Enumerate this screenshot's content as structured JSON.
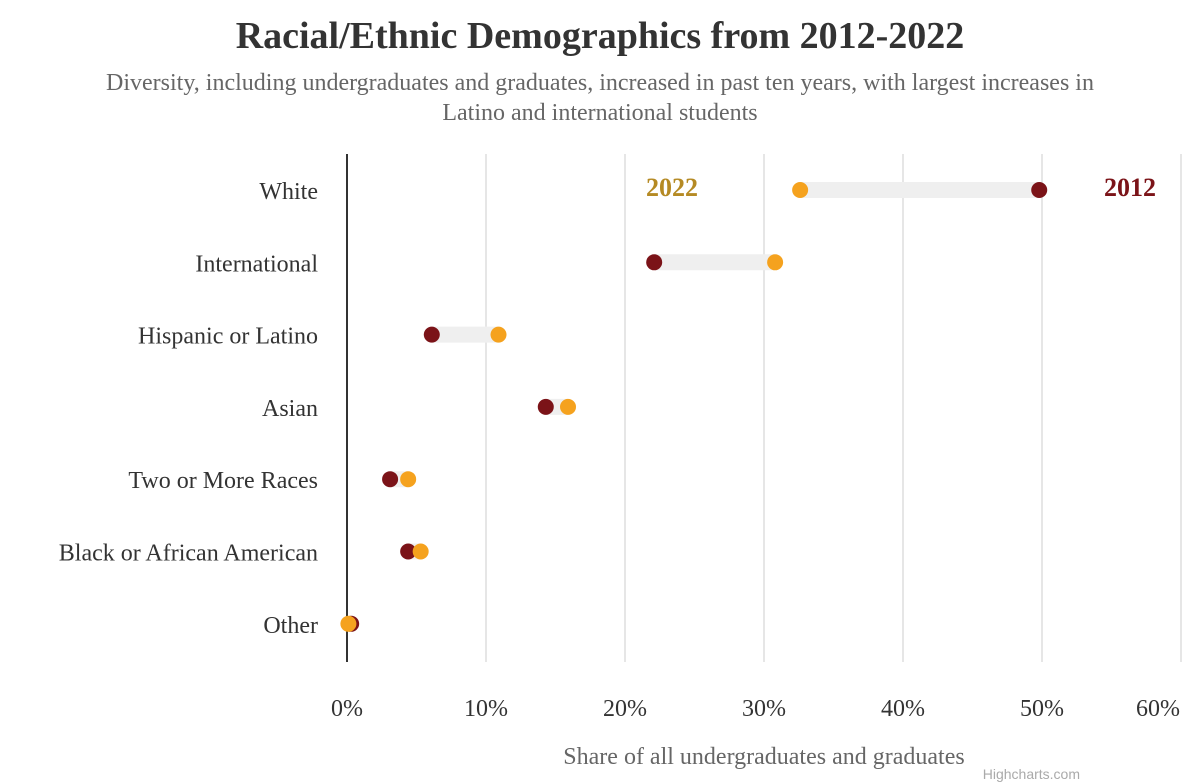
{
  "chart_data": {
    "type": "dumbbell",
    "title": "Racial/Ethnic Demographics from 2012-2022",
    "subtitle": "Diversity, including undergraduates and graduates, increased in past ten years, with largest increases in Latino and international students",
    "xlabel": "Share of all undergraduates and graduates",
    "xlim": [
      0,
      60
    ],
    "x_ticks": [
      0,
      10,
      20,
      30,
      40,
      50,
      60
    ],
    "x_tick_labels": [
      "0%",
      "10%",
      "20%",
      "30%",
      "40%",
      "50%",
      "60%"
    ],
    "grid": true,
    "categories": [
      "White",
      "International",
      "Hispanic or Latino",
      "Asian",
      "Two or More Races",
      "Black or African American",
      "Other"
    ],
    "series": [
      {
        "name": "2012",
        "color": "#7b1318",
        "values": [
          49.8,
          22.1,
          6.1,
          14.3,
          3.1,
          4.4,
          0.3
        ]
      },
      {
        "name": "2022",
        "color": "#f5a21e",
        "values": [
          32.6,
          30.8,
          10.9,
          15.9,
          4.4,
          5.3,
          0.1
        ]
      }
    ],
    "series_label_colors": {
      "2012": "#7b1318",
      "2022": "#b58a24"
    },
    "credits": "Highcharts.com"
  }
}
